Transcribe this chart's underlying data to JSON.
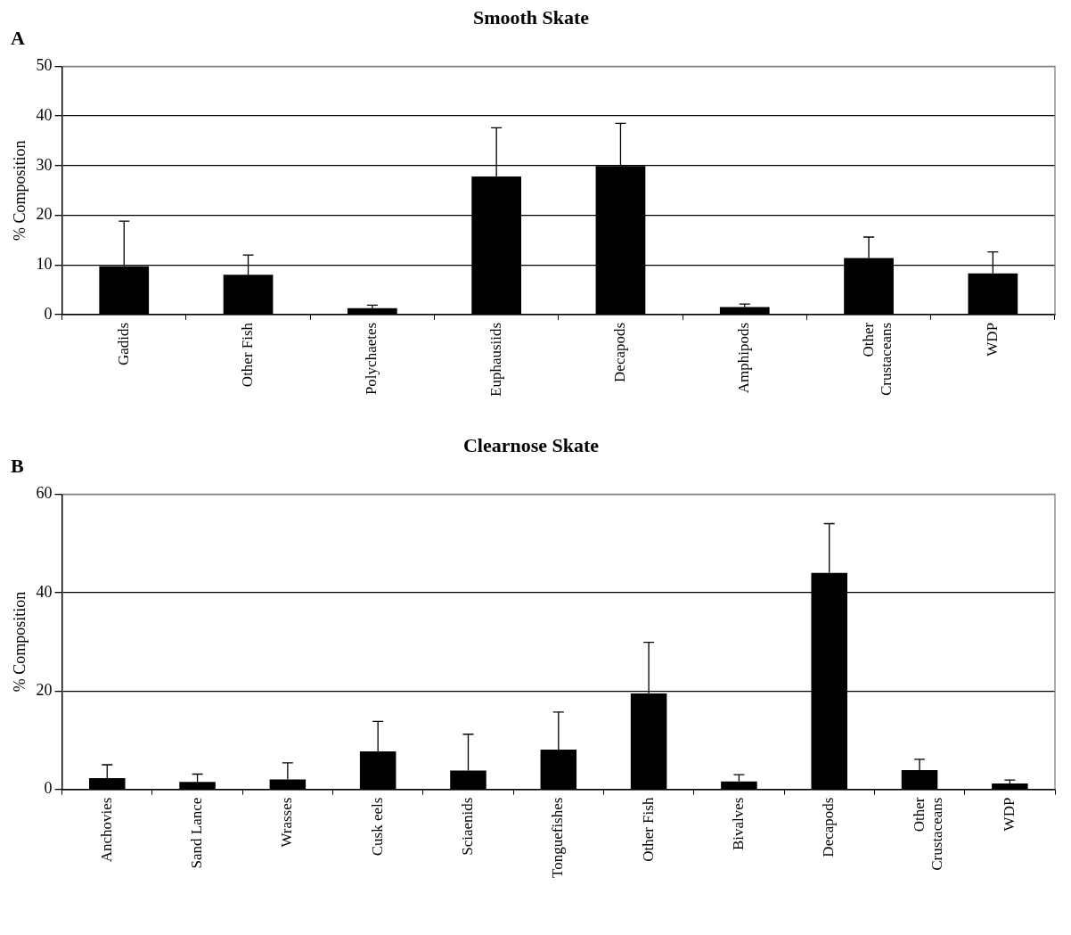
{
  "chart_data": [
    {
      "type": "bar",
      "title": "Smooth Skate",
      "ylabel": "% Composition",
      "annotations": [
        "A"
      ],
      "categories": [
        "Gadids",
        "Other Fish",
        "Polychaetes",
        "Euphausiids",
        "Decapods",
        "Amphipods",
        "Other Crustaceans",
        "WDP"
      ],
      "values": [
        9.7,
        8.0,
        1.3,
        27.8,
        29.9,
        1.5,
        11.4,
        8.3
      ],
      "errors": [
        [
          9.7,
          18.8
        ],
        [
          8.0,
          12.0
        ],
        [
          1.3,
          1.9
        ],
        [
          27.8,
          37.6
        ],
        [
          29.9,
          38.5
        ],
        [
          1.5,
          2.1
        ],
        [
          11.4,
          15.6
        ],
        [
          8.3,
          12.6
        ]
      ],
      "color": "#000000",
      "ylim": [
        0,
        50
      ],
      "yticks": [
        0,
        10,
        20,
        30,
        40,
        50
      ],
      "grid": "y",
      "legend": false
    },
    {
      "type": "bar",
      "title": "Clearnose Skate",
      "ylabel": "% Composition",
      "annotations": [
        "B"
      ],
      "categories": [
        "Anchovies",
        "Sand Lance",
        "Wrasses",
        "Cusk eels",
        "Sciaenids",
        "Tonguefishes",
        "Other Fish",
        "Bivalves",
        "Decapods",
        "Other Crustaceans",
        "WDP"
      ],
      "values": [
        2.3,
        1.5,
        2.0,
        7.7,
        3.8,
        8.1,
        19.5,
        1.6,
        44.0,
        3.9,
        1.2
      ],
      "errors": [
        [
          2.3,
          5.0
        ],
        [
          1.5,
          3.1
        ],
        [
          2.0,
          5.4
        ],
        [
          7.7,
          13.8
        ],
        [
          3.8,
          11.2
        ],
        [
          8.1,
          15.7
        ],
        [
          19.5,
          29.9
        ],
        [
          1.6,
          3.0
        ],
        [
          44.0,
          54.0
        ],
        [
          3.9,
          6.1
        ],
        [
          1.2,
          1.9
        ]
      ],
      "color": "#000000",
      "ylim": [
        0,
        60
      ],
      "yticks": [
        0,
        20,
        40,
        60
      ],
      "grid": "y",
      "legend": false
    }
  ]
}
